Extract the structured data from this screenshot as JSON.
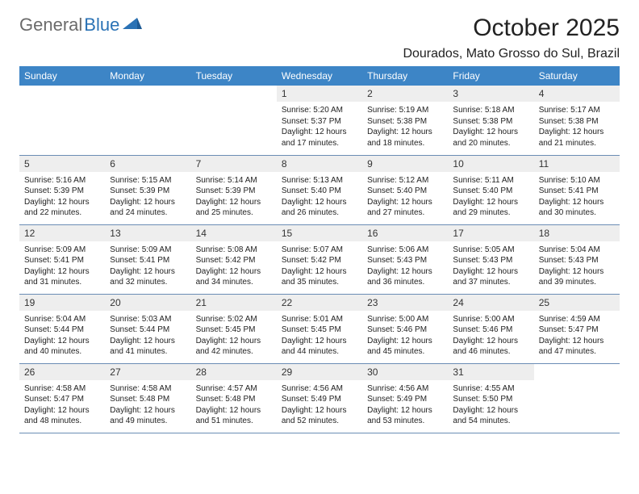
{
  "logo": {
    "text_gray": "General",
    "text_blue": "Blue"
  },
  "title": "October 2025",
  "location": "Dourados, Mato Grosso do Sul, Brazil",
  "colors": {
    "header_bg": "#3d85c6",
    "header_text": "#ffffff",
    "daynum_bg": "#eeeeee",
    "row_border": "#6b8db5",
    "logo_gray": "#6b6b6b",
    "logo_blue": "#2a72b5"
  },
  "weekdays": [
    "Sunday",
    "Monday",
    "Tuesday",
    "Wednesday",
    "Thursday",
    "Friday",
    "Saturday"
  ],
  "cells": [
    {
      "blank": true
    },
    {
      "blank": true
    },
    {
      "blank": true
    },
    {
      "day": "1",
      "sunrise": "Sunrise: 5:20 AM",
      "sunset": "Sunset: 5:37 PM",
      "daylight": "Daylight: 12 hours and 17 minutes."
    },
    {
      "day": "2",
      "sunrise": "Sunrise: 5:19 AM",
      "sunset": "Sunset: 5:38 PM",
      "daylight": "Daylight: 12 hours and 18 minutes."
    },
    {
      "day": "3",
      "sunrise": "Sunrise: 5:18 AM",
      "sunset": "Sunset: 5:38 PM",
      "daylight": "Daylight: 12 hours and 20 minutes."
    },
    {
      "day": "4",
      "sunrise": "Sunrise: 5:17 AM",
      "sunset": "Sunset: 5:38 PM",
      "daylight": "Daylight: 12 hours and 21 minutes."
    },
    {
      "day": "5",
      "sunrise": "Sunrise: 5:16 AM",
      "sunset": "Sunset: 5:39 PM",
      "daylight": "Daylight: 12 hours and 22 minutes."
    },
    {
      "day": "6",
      "sunrise": "Sunrise: 5:15 AM",
      "sunset": "Sunset: 5:39 PM",
      "daylight": "Daylight: 12 hours and 24 minutes."
    },
    {
      "day": "7",
      "sunrise": "Sunrise: 5:14 AM",
      "sunset": "Sunset: 5:39 PM",
      "daylight": "Daylight: 12 hours and 25 minutes."
    },
    {
      "day": "8",
      "sunrise": "Sunrise: 5:13 AM",
      "sunset": "Sunset: 5:40 PM",
      "daylight": "Daylight: 12 hours and 26 minutes."
    },
    {
      "day": "9",
      "sunrise": "Sunrise: 5:12 AM",
      "sunset": "Sunset: 5:40 PM",
      "daylight": "Daylight: 12 hours and 27 minutes."
    },
    {
      "day": "10",
      "sunrise": "Sunrise: 5:11 AM",
      "sunset": "Sunset: 5:40 PM",
      "daylight": "Daylight: 12 hours and 29 minutes."
    },
    {
      "day": "11",
      "sunrise": "Sunrise: 5:10 AM",
      "sunset": "Sunset: 5:41 PM",
      "daylight": "Daylight: 12 hours and 30 minutes."
    },
    {
      "day": "12",
      "sunrise": "Sunrise: 5:09 AM",
      "sunset": "Sunset: 5:41 PM",
      "daylight": "Daylight: 12 hours and 31 minutes."
    },
    {
      "day": "13",
      "sunrise": "Sunrise: 5:09 AM",
      "sunset": "Sunset: 5:41 PM",
      "daylight": "Daylight: 12 hours and 32 minutes."
    },
    {
      "day": "14",
      "sunrise": "Sunrise: 5:08 AM",
      "sunset": "Sunset: 5:42 PM",
      "daylight": "Daylight: 12 hours and 34 minutes."
    },
    {
      "day": "15",
      "sunrise": "Sunrise: 5:07 AM",
      "sunset": "Sunset: 5:42 PM",
      "daylight": "Daylight: 12 hours and 35 minutes."
    },
    {
      "day": "16",
      "sunrise": "Sunrise: 5:06 AM",
      "sunset": "Sunset: 5:43 PM",
      "daylight": "Daylight: 12 hours and 36 minutes."
    },
    {
      "day": "17",
      "sunrise": "Sunrise: 5:05 AM",
      "sunset": "Sunset: 5:43 PM",
      "daylight": "Daylight: 12 hours and 37 minutes."
    },
    {
      "day": "18",
      "sunrise": "Sunrise: 5:04 AM",
      "sunset": "Sunset: 5:43 PM",
      "daylight": "Daylight: 12 hours and 39 minutes."
    },
    {
      "day": "19",
      "sunrise": "Sunrise: 5:04 AM",
      "sunset": "Sunset: 5:44 PM",
      "daylight": "Daylight: 12 hours and 40 minutes."
    },
    {
      "day": "20",
      "sunrise": "Sunrise: 5:03 AM",
      "sunset": "Sunset: 5:44 PM",
      "daylight": "Daylight: 12 hours and 41 minutes."
    },
    {
      "day": "21",
      "sunrise": "Sunrise: 5:02 AM",
      "sunset": "Sunset: 5:45 PM",
      "daylight": "Daylight: 12 hours and 42 minutes."
    },
    {
      "day": "22",
      "sunrise": "Sunrise: 5:01 AM",
      "sunset": "Sunset: 5:45 PM",
      "daylight": "Daylight: 12 hours and 44 minutes."
    },
    {
      "day": "23",
      "sunrise": "Sunrise: 5:00 AM",
      "sunset": "Sunset: 5:46 PM",
      "daylight": "Daylight: 12 hours and 45 minutes."
    },
    {
      "day": "24",
      "sunrise": "Sunrise: 5:00 AM",
      "sunset": "Sunset: 5:46 PM",
      "daylight": "Daylight: 12 hours and 46 minutes."
    },
    {
      "day": "25",
      "sunrise": "Sunrise: 4:59 AM",
      "sunset": "Sunset: 5:47 PM",
      "daylight": "Daylight: 12 hours and 47 minutes."
    },
    {
      "day": "26",
      "sunrise": "Sunrise: 4:58 AM",
      "sunset": "Sunset: 5:47 PM",
      "daylight": "Daylight: 12 hours and 48 minutes."
    },
    {
      "day": "27",
      "sunrise": "Sunrise: 4:58 AM",
      "sunset": "Sunset: 5:48 PM",
      "daylight": "Daylight: 12 hours and 49 minutes."
    },
    {
      "day": "28",
      "sunrise": "Sunrise: 4:57 AM",
      "sunset": "Sunset: 5:48 PM",
      "daylight": "Daylight: 12 hours and 51 minutes."
    },
    {
      "day": "29",
      "sunrise": "Sunrise: 4:56 AM",
      "sunset": "Sunset: 5:49 PM",
      "daylight": "Daylight: 12 hours and 52 minutes."
    },
    {
      "day": "30",
      "sunrise": "Sunrise: 4:56 AM",
      "sunset": "Sunset: 5:49 PM",
      "daylight": "Daylight: 12 hours and 53 minutes."
    },
    {
      "day": "31",
      "sunrise": "Sunrise: 4:55 AM",
      "sunset": "Sunset: 5:50 PM",
      "daylight": "Daylight: 12 hours and 54 minutes."
    },
    {
      "blank": true
    }
  ]
}
